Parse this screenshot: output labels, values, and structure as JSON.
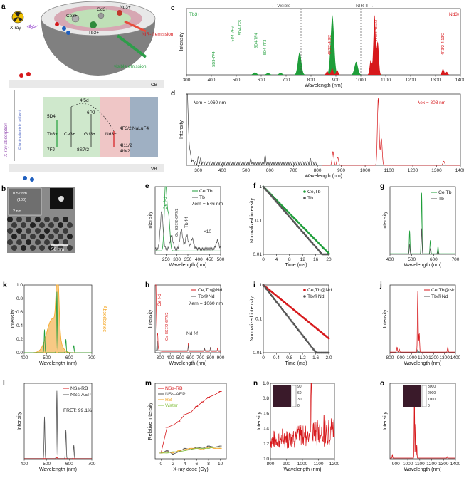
{
  "colors": {
    "green": "#1f9e3a",
    "red": "#d7191c",
    "gray": "#555555",
    "orange": "#f5a623",
    "gold": "#e6b422",
    "lightgreen": "#8bc34a"
  },
  "scheme": {
    "panel_label": "a",
    "xray": "X-ray",
    "ions": {
      "ce": "Ce3+",
      "gd": "Gd3+",
      "nd": "Nd3+",
      "tb": "Tb3+"
    },
    "nir_emission": "NIR-II emission",
    "visible_emission": "visible emission",
    "cb": "CB",
    "vb": "VB",
    "side_photo": "Photoelectric effect",
    "side_xray": "X-ray absorption",
    "level_4f5d": "4f5d",
    "host": "NaLuF4",
    "ion_labels": [
      "Tb3+",
      "Ce3+",
      "Gd3+",
      "Nd3+"
    ],
    "levels": [
      "5D4",
      "7FJ",
      "6PJ",
      "8S7/2",
      "4F3/2",
      "4I11/2",
      "4I9/2"
    ]
  },
  "tem": {
    "panel_label": "b",
    "lattice": "0.52 nm",
    "plane": "(100)",
    "scale_inset": "2 nm",
    "scale": "50 nm"
  },
  "chart_data": [
    {
      "id": "c",
      "type": "area",
      "xlabel": "Wavelength (nm)",
      "ylabel": "Intensity",
      "xlim": [
        300,
        1400
      ],
      "xticks": [
        300,
        400,
        500,
        600,
        700,
        800,
        900,
        1000,
        1100,
        1200,
        1300,
        1400
      ],
      "dividers": [
        760,
        1000
      ],
      "regions": [
        "Visible",
        "NIR-II"
      ],
      "series": [
        {
          "name": "Tb3+",
          "color": "green",
          "peaks": [
            [
              490,
              0.38
            ],
            [
              545,
              1.0
            ],
            [
              585,
              0.22
            ],
            [
              620,
              0.12
            ],
            [
              415,
              0.04
            ],
            [
              437,
              0.03
            ],
            [
              458,
              0.03
            ]
          ]
        },
        {
          "name": "Nd3+",
          "color": "red",
          "peaks": [
            [
              865,
              0.06
            ],
            [
              885,
              0.11
            ],
            [
              905,
              0.08
            ],
            [
              1055,
              1.0
            ],
            [
              1068,
              0.55
            ],
            [
              1040,
              0.25
            ],
            [
              1330,
              0.1
            ],
            [
              1345,
              0.05
            ]
          ]
        }
      ],
      "annotations": [
        "5D3-7F4",
        "5D4-7F6",
        "5D4-7F5",
        "5D4-7F4",
        "5D4-7F3",
        "4F3/2-4I9/2",
        "4F3/2-4I11/2",
        "4F3/2-4I13/2"
      ]
    },
    {
      "id": "d",
      "type": "line",
      "xlabel": "Wavelength (nm)",
      "ylabel": "Intensity",
      "xlim": [
        250,
        1400
      ],
      "xticks": [
        300,
        400,
        500,
        600,
        700,
        800,
        900,
        1000,
        1100,
        1200,
        1300,
        1400
      ],
      "labels": [
        "λem = 1060 nm",
        "λex = 808 nm"
      ]
    },
    {
      "id": "e",
      "type": "line",
      "xlabel": "Wavelength (nm)",
      "ylabel": "Intensity",
      "xlim": [
        200,
        500
      ],
      "xticks": [
        250,
        300,
        350,
        400,
        450,
        500
      ],
      "series": [
        {
          "name": "Ce,Tb",
          "color": "green"
        },
        {
          "name": "Tb",
          "color": "gray"
        }
      ],
      "labels": [
        "λem = 546 nm",
        "Ce f-d",
        "Gd 8S7/2-6P7/2",
        "Tb f-f",
        "×10"
      ]
    },
    {
      "id": "f",
      "type": "scatter",
      "xlabel": "Time (ms)",
      "ylabel": "Normalized intensity",
      "xlim": [
        0,
        20
      ],
      "yscale": "log",
      "ylim": [
        0.01,
        1
      ],
      "xticks": [
        0,
        4,
        8,
        12,
        16,
        20
      ],
      "yticks": [
        "0.01",
        "0.1",
        "1"
      ],
      "series": [
        {
          "name": "Ce,Tb",
          "color": "green",
          "tau": 4.4
        },
        {
          "name": "Tb",
          "color": "gray",
          "tau": 3.9
        }
      ]
    },
    {
      "id": "g",
      "type": "line",
      "xlabel": "Wavelength (nm)",
      "ylabel": "Intensity",
      "xlim": [
        400,
        700
      ],
      "xticks": [
        400,
        500,
        600,
        700
      ],
      "series": [
        {
          "name": "Ce,Tb",
          "color": "green",
          "scale": 1.0
        },
        {
          "name": "Tb",
          "color": "gray",
          "scale": 0.42
        }
      ]
    },
    {
      "id": "k",
      "type": "line",
      "xlabel": "Wavelength (nm)",
      "ylabel": "Intensity",
      "y2label": "Absorbance",
      "xlim": [
        400,
        700
      ],
      "xticks": [
        400,
        500,
        600,
        700
      ],
      "yticks": [
        "0.0",
        "0.2",
        "0.4",
        "0.6",
        "0.8",
        "1.0"
      ]
    },
    {
      "id": "h",
      "type": "line",
      "xlabel": "Wavelength (nm)",
      "ylabel": "Intensity",
      "xlim": [
        250,
        900
      ],
      "xticks": [
        300,
        400,
        500,
        600,
        700,
        800,
        900
      ],
      "series": [
        {
          "name": "Ce,Tb@Nd",
          "color": "red"
        },
        {
          "name": "Tb@Nd",
          "color": "gray"
        }
      ],
      "labels": [
        "λem = 1060 nm",
        "Ce f-d",
        "Gd 8S7/2-6P7/2",
        "Nd f-f"
      ]
    },
    {
      "id": "i",
      "type": "scatter",
      "xlabel": "Time (ms)",
      "ylabel": "Normalized intensity",
      "xlim": [
        0,
        2
      ],
      "yscale": "log",
      "ylim": [
        0.01,
        1
      ],
      "xticks": [
        "0",
        "0.4",
        "0.8",
        "1.2",
        "1.6",
        "2.0"
      ],
      "yticks": [
        "0.01",
        "0.1",
        "1"
      ],
      "series": [
        {
          "name": "Ce,Tb@Nd",
          "color": "red",
          "tau": 0.55
        },
        {
          "name": "Tb@Nd",
          "color": "gray",
          "tau": 0.35
        }
      ]
    },
    {
      "id": "j",
      "type": "line",
      "xlabel": "Wavelength (nm)",
      "ylabel": "Intensity",
      "xlim": [
        800,
        1400
      ],
      "xticks": [
        800,
        900,
        1000,
        1100,
        1200,
        1300,
        1400
      ],
      "series": [
        {
          "name": "Ce,Tb@Nd",
          "color": "red",
          "scale": 1.0
        },
        {
          "name": "Tb@Nd",
          "color": "gray",
          "scale": 0.05
        }
      ]
    },
    {
      "id": "l",
      "type": "line",
      "xlabel": "Wavelength (nm)",
      "ylabel": "Intensity",
      "xlim": [
        400,
        700
      ],
      "xticks": [
        400,
        500,
        600,
        700
      ],
      "series": [
        {
          "name": "NSs-RB",
          "color": "red"
        },
        {
          "name": "NSs-AEP",
          "color": "gray"
        }
      ],
      "labels": [
        "FRET: 99.1%"
      ]
    },
    {
      "id": "m",
      "type": "line",
      "xlabel": "X-ray dose (Gy)",
      "ylabel": "Relative intensity",
      "xlim": [
        -1,
        11
      ],
      "ylim": [
        -0.05,
        0.6
      ],
      "xticks": [
        0,
        2,
        4,
        6,
        8,
        10
      ],
      "x": [
        0,
        1,
        2,
        3,
        4,
        5,
        6,
        7,
        8,
        9,
        10
      ],
      "series": [
        {
          "name": "NSs-RB",
          "color": "red",
          "values": [
            0,
            0.22,
            0.24,
            0.27,
            0.33,
            0.35,
            0.4,
            0.44,
            0.48,
            0.5,
            0.53
          ]
        },
        {
          "name": "NSs-AEP",
          "color": "gray",
          "values": [
            0,
            0.02,
            -0.01,
            0.01,
            0.04,
            0.03,
            0.05,
            0.04,
            0.06,
            0.05,
            0.06
          ]
        },
        {
          "name": "RB",
          "color": "orange",
          "values": [
            0,
            0.01,
            0.0,
            0.02,
            0.03,
            0.04,
            0.04,
            0.03,
            0.05,
            0.04,
            0.04
          ]
        },
        {
          "name": "Water",
          "color": "lightgreen",
          "values": [
            0,
            0.0,
            0.01,
            0.01,
            0.02,
            0.03,
            0.04,
            0.04,
            0.04,
            0.05,
            0.05
          ]
        }
      ]
    },
    {
      "id": "n",
      "type": "line",
      "xlabel": "Wavelength (nm)",
      "ylabel": "Intensity",
      "xlim": [
        800,
        1200
      ],
      "ylim": [
        0,
        1
      ],
      "xticks": [
        800,
        900,
        1000,
        1100,
        1200
      ],
      "yticks": [
        "0.0",
        "0.2",
        "0.4",
        "0.6",
        "0.8",
        "1.0"
      ],
      "inset_ticks": [
        "90",
        "60",
        "30",
        "0"
      ]
    },
    {
      "id": "o",
      "type": "line",
      "xlabel": "Wavelength (nm)",
      "ylabel": "Intensity",
      "xlim": [
        850,
        1400
      ],
      "xticks": [
        900,
        1000,
        1100,
        1200,
        1300,
        1400
      ],
      "inset_ticks": [
        "3000",
        "2000",
        "1000",
        "0"
      ]
    }
  ]
}
